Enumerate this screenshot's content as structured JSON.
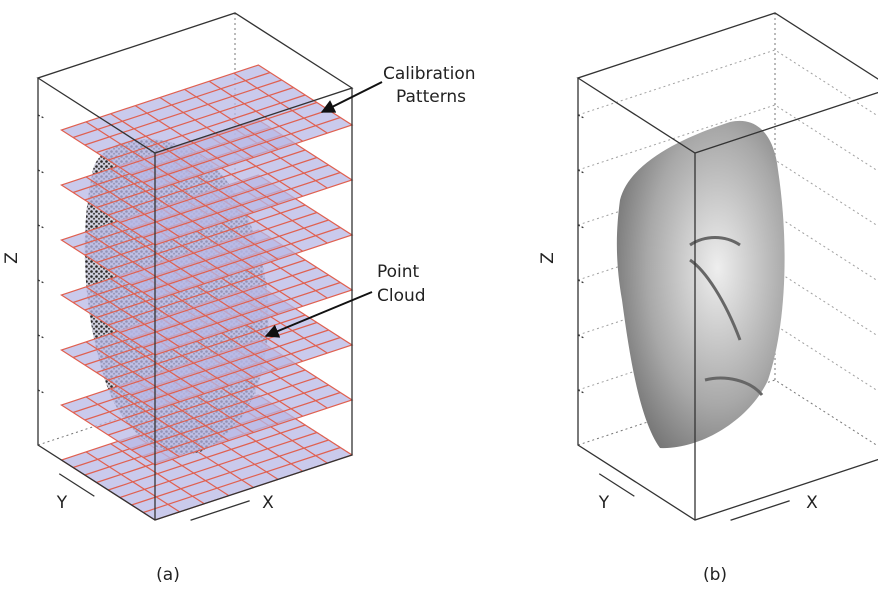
{
  "panels": [
    {
      "caption": "(a)",
      "axes": {
        "z": "Z",
        "y": "Y",
        "x": "X"
      },
      "annotations": [
        {
          "lines": [
            "Calibration",
            "Patterns"
          ]
        },
        {
          "lines": [
            "Point",
            "Cloud"
          ]
        }
      ]
    },
    {
      "caption": "(b)",
      "axes": {
        "z": "Z",
        "y": "Y",
        "x": "X"
      }
    }
  ]
}
